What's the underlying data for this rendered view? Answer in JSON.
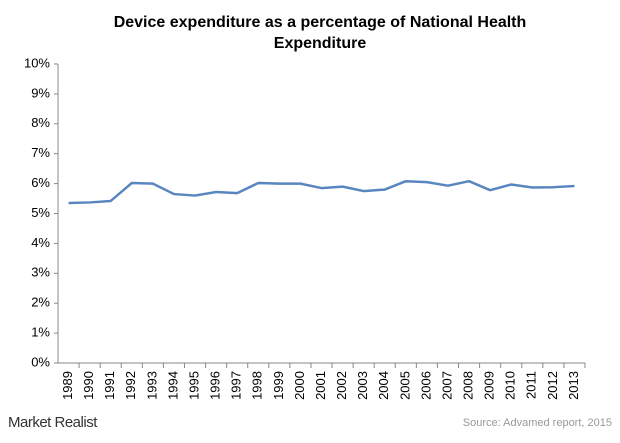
{
  "chart_data": {
    "type": "line",
    "title": "Device expenditure  as a percentage  of National Health Expenditure",
    "categories": [
      "1989",
      "1990",
      "1991",
      "1992",
      "1993",
      "1994",
      "1995",
      "1996",
      "1997",
      "1998",
      "1999",
      "2000",
      "2001",
      "2002",
      "2003",
      "2004",
      "2005",
      "2006",
      "2007",
      "2008",
      "2009",
      "2010",
      "2011",
      "2012",
      "2013"
    ],
    "values": [
      5.35,
      5.37,
      5.42,
      6.02,
      6.0,
      5.65,
      5.6,
      5.72,
      5.68,
      6.02,
      6.0,
      6.0,
      5.85,
      5.9,
      5.75,
      5.8,
      6.08,
      6.05,
      5.93,
      6.08,
      5.78,
      5.97,
      5.87,
      5.88,
      5.92
    ],
    "color": "#5a86c0",
    "ylim": [
      0,
      10
    ],
    "yticks": [
      {
        "value": 0,
        "label": "0%"
      },
      {
        "value": 1,
        "label": "1%"
      },
      {
        "value": 2,
        "label": "2%"
      },
      {
        "value": 3,
        "label": "3%"
      },
      {
        "value": 4,
        "label": "4%"
      },
      {
        "value": 5,
        "label": "5%"
      },
      {
        "value": 6,
        "label": "6%"
      },
      {
        "value": 7,
        "label": "7%"
      },
      {
        "value": 8,
        "label": "8%"
      },
      {
        "value": 9,
        "label": "9%"
      },
      {
        "value": 10,
        "label": "10%"
      }
    ],
    "grid": false,
    "source": "Source: Advamed report, 2015"
  },
  "brand": "Market Realist"
}
